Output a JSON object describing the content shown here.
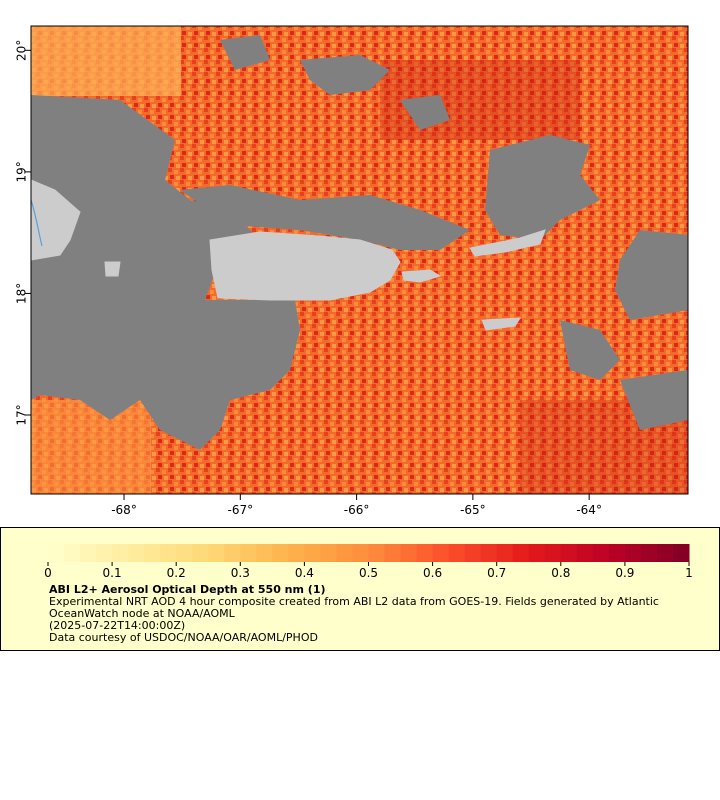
{
  "map": {
    "lat_ticks": [
      "20°",
      "19°",
      "18°",
      "17°"
    ],
    "lon_ticks": [
      "-68°",
      "-67°",
      "-66°",
      "-65°",
      "-64°"
    ],
    "colors": {
      "no_data": "#808080",
      "land": "#cccccc",
      "water_line": "#5aa0d8"
    }
  },
  "legend": {
    "ticks": [
      "0",
      "0.1",
      "0.2",
      "0.3",
      "0.4",
      "0.5",
      "0.6",
      "0.7",
      "0.8",
      "0.9",
      "1"
    ],
    "title": "ABI L2+ Aerosol Optical Depth at 550 nm (1)",
    "line1": "Experimental NRT AOD 4 hour composite created from ABI L2 data from GOES-19. Fields generated by Atlantic OceanWatch node at NOAA/AOML",
    "line2": "(2025-07-22T14:00:00Z)",
    "line3": "Data courtesy of USDOC/NOAA/OAR/AOML/PHOD",
    "colormap": [
      "#ffffcc",
      "#ffeda0",
      "#fed976",
      "#feb24c",
      "#fd8d3c",
      "#fc4e2a",
      "#e31a1c",
      "#bd0026",
      "#800026"
    ]
  },
  "chart_data": {
    "type": "heatmap",
    "variable": "ABI L2+ Aerosol Optical Depth at 550 nm (1)",
    "colorbar_range": [
      0,
      1
    ],
    "xlim": [
      -68.8,
      -63.15
    ],
    "ylim": [
      16.35,
      20.2
    ],
    "x_ticks": [
      -68,
      -67,
      -66,
      -65,
      -64
    ],
    "y_ticks": [
      20,
      19,
      18,
      17
    ]
  }
}
